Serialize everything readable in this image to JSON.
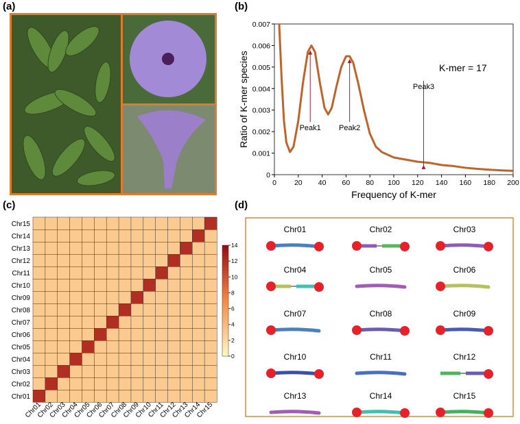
{
  "panel_labels": [
    "(a)",
    "(b)",
    "(c)",
    "(d)"
  ],
  "chart_data": [
    {
      "type": "line",
      "xlabel": "Frequency of K-mer",
      "ylabel": "Ratio of K-mer species",
      "annotation": "K-mer = 17",
      "x": [
        4,
        6,
        8,
        10,
        13,
        16,
        20,
        24,
        28,
        31,
        34,
        38,
        42,
        45,
        48,
        52,
        56,
        60,
        63,
        66,
        70,
        75,
        80,
        85,
        90,
        100,
        110,
        120,
        130,
        140,
        150,
        160,
        170,
        180,
        190,
        200
      ],
      "series": [
        {
          "name": "K-mer",
          "color": "#c0632a",
          "values": [
            0.007,
            0.0045,
            0.0025,
            0.0015,
            0.00105,
            0.0013,
            0.0025,
            0.0043,
            0.0057,
            0.006,
            0.0057,
            0.0043,
            0.0031,
            0.0028,
            0.0031,
            0.0041,
            0.005,
            0.0055,
            0.0055,
            0.0052,
            0.0043,
            0.003,
            0.0019,
            0.0013,
            0.00105,
            0.0008,
            0.0007,
            0.0006,
            0.00055,
            0.00045,
            0.0004,
            0.00032,
            0.00027,
            0.00023,
            0.0002,
            0.00018
          ]
        }
      ],
      "peaks": [
        {
          "text": "Peak1",
          "x": 30
        },
        {
          "text": "Peak2",
          "x": 63
        },
        {
          "text": "Peak3",
          "x": 125
        }
      ],
      "xlim": [
        0,
        200
      ],
      "xticks": [
        0,
        20,
        40,
        60,
        80,
        100,
        120,
        140,
        160,
        180,
        200
      ],
      "ylim": [
        0,
        0.007
      ],
      "yticks": [
        0,
        0.001,
        0.002,
        0.003,
        0.004,
        0.005,
        0.006,
        0.007
      ]
    },
    {
      "type": "heatmap",
      "categories": [
        "Chr01",
        "Chr02",
        "Chr03",
        "Chr04",
        "Chr05",
        "Chr06",
        "Chr07",
        "Chr08",
        "Chr09",
        "Chr10",
        "Chr11",
        "Chr12",
        "Chr13",
        "Chr14",
        "Chr15"
      ],
      "values": [
        [
          12,
          3,
          3,
          3,
          3,
          3,
          3,
          3,
          3,
          3,
          3,
          3,
          3,
          3,
          3
        ],
        [
          3,
          12,
          3,
          3,
          3,
          3,
          3,
          3,
          3,
          3,
          3,
          3,
          3,
          3,
          3
        ],
        [
          3,
          3,
          12,
          3,
          3,
          3,
          3,
          3,
          3,
          3,
          3,
          3,
          3,
          3,
          3
        ],
        [
          3,
          3,
          3,
          12,
          3,
          3,
          3,
          3,
          3,
          3,
          3,
          3,
          3,
          3,
          3
        ],
        [
          3,
          3,
          3,
          3,
          12,
          3,
          3,
          3,
          3,
          3,
          3,
          3,
          3,
          3,
          3
        ],
        [
          3,
          3,
          3,
          3,
          3,
          12,
          3,
          3,
          3,
          3,
          3,
          3,
          3,
          3,
          3
        ],
        [
          3,
          3,
          3,
          3,
          3,
          3,
          12,
          3,
          3,
          3,
          3,
          3,
          3,
          3,
          3
        ],
        [
          3,
          3,
          3,
          3,
          3,
          3,
          3,
          12,
          3,
          3,
          3,
          3,
          3,
          3,
          3
        ],
        [
          3,
          3,
          3,
          3,
          3,
          3,
          3,
          3,
          12,
          3,
          3,
          3,
          3,
          3,
          3
        ],
        [
          3,
          3,
          3,
          3,
          3,
          3,
          3,
          3,
          3,
          12,
          3,
          3,
          3,
          3,
          3
        ],
        [
          3,
          3,
          3,
          3,
          3,
          3,
          3,
          3,
          3,
          3,
          12,
          3,
          3,
          3,
          3
        ],
        [
          3,
          3,
          3,
          3,
          3,
          3,
          3,
          3,
          3,
          3,
          3,
          12,
          3,
          3,
          3
        ],
        [
          3,
          3,
          3,
          3,
          3,
          3,
          3,
          3,
          3,
          3,
          3,
          3,
          12,
          3,
          3
        ],
        [
          3,
          3,
          3,
          3,
          3,
          3,
          3,
          3,
          3,
          3,
          3,
          3,
          3,
          12,
          3
        ],
        [
          3,
          3,
          3,
          3,
          3,
          3,
          3,
          3,
          3,
          3,
          3,
          3,
          3,
          3,
          12
        ]
      ],
      "zlim": [
        0,
        14
      ],
      "colorbar_ticks": [
        0,
        2,
        4,
        6,
        8,
        10,
        12,
        14
      ]
    }
  ],
  "karyotype": {
    "chromosomes": [
      "Chr01",
      "Chr02",
      "Chr03",
      "Chr04",
      "Chr05",
      "Chr06",
      "Chr07",
      "Chr08",
      "Chr09",
      "Chr10",
      "Chr11",
      "Chr12",
      "Chr13",
      "Chr14",
      "Chr15"
    ]
  }
}
